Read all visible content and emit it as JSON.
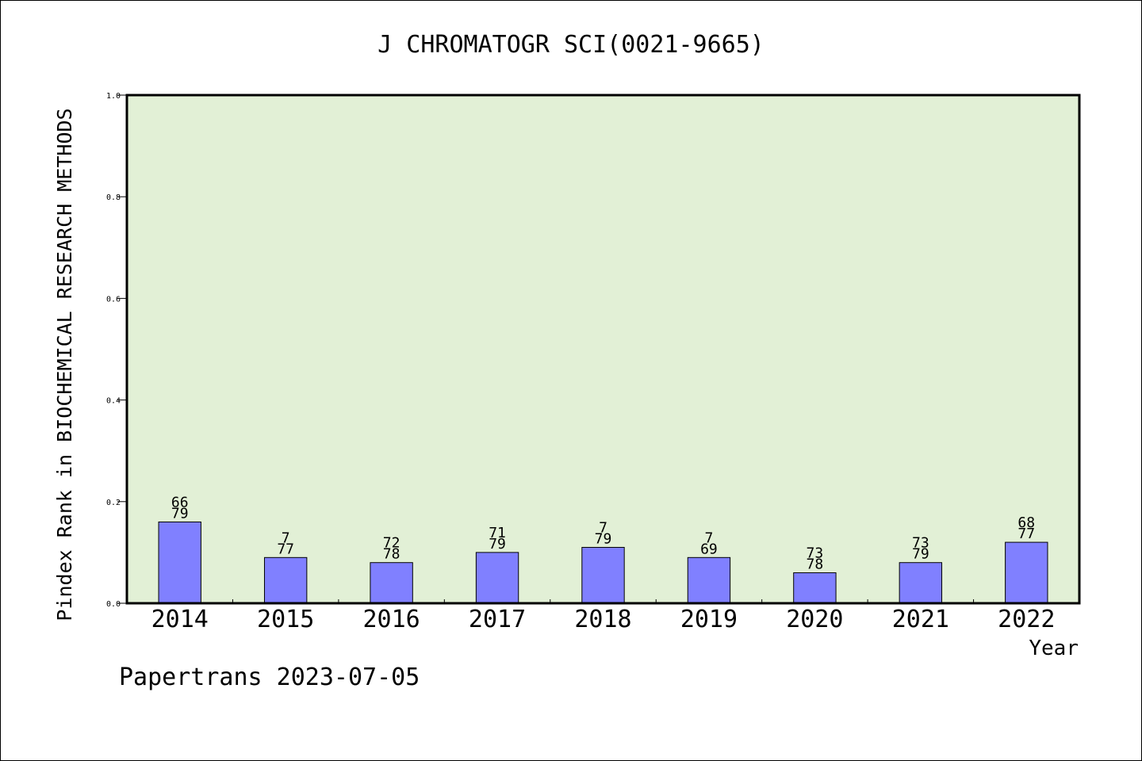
{
  "chart_data": {
    "type": "bar",
    "title": "J CHROMATOGR SCI(0021-9665)",
    "xlabel": "Year",
    "ylabel": "Pindex Rank in BIOCHEMICAL RESEARCH METHODS",
    "ylim": [
      0,
      1
    ],
    "yticks": [
      "0.0",
      "0.2",
      "0.4",
      "0.6",
      "0.8",
      "1.0"
    ],
    "grid": false,
    "categories": [
      "2014",
      "2015",
      "2016",
      "2017",
      "2018",
      "2019",
      "2020",
      "2021",
      "2022"
    ],
    "values": [
      0.16,
      0.09,
      0.08,
      0.1,
      0.11,
      0.09,
      0.06,
      0.08,
      0.12
    ],
    "label_top": [
      "66",
      "7",
      "72",
      "71",
      "7",
      "7",
      "73",
      "73",
      "68"
    ],
    "label_bottom": [
      "79",
      "77",
      "78",
      "79",
      "79",
      "69",
      "78",
      "79",
      "77"
    ],
    "footer": "Papertrans 2023-07-05",
    "colors": {
      "plot_background": "#e2f0d6",
      "bar_fill": "#8080ff",
      "bar_stroke": "#000000",
      "axis": "#000000"
    }
  }
}
